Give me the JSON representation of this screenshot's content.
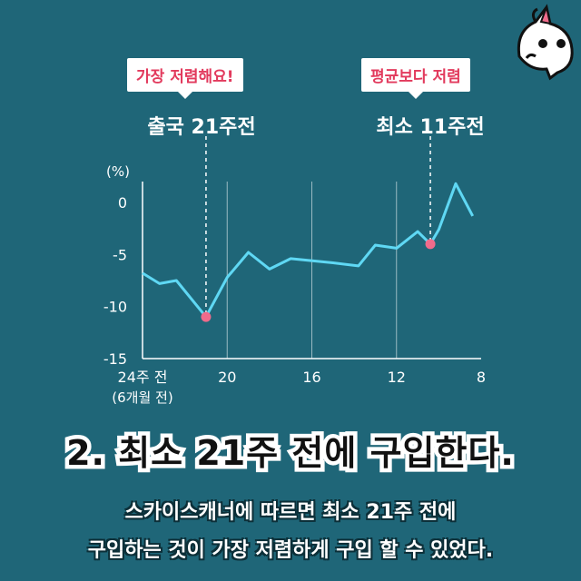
{
  "callouts": [
    {
      "tag": "가장 저렴해요!",
      "label": "출국 21주전"
    },
    {
      "tag": "평균보다 저렴",
      "label": "최소 11주전"
    }
  ],
  "chart_data": {
    "type": "line",
    "ylabel": "(%)",
    "ylim": [
      -15,
      2
    ],
    "yticks": [
      0,
      -5,
      -10,
      -15
    ],
    "xlim": [
      24,
      8
    ],
    "xticks": [
      "24주 전",
      "20",
      "16",
      "12",
      "8"
    ],
    "xtick_sub": "(6개월 전)",
    "series": [
      {
        "x": [
          24,
          23.2,
          22.4,
          21,
          20,
          19,
          18,
          17,
          15,
          13.8,
          13,
          12,
          11,
          10.4,
          10,
          9.2,
          8.4
        ],
        "y": [
          -6.8,
          -7.8,
          -7.5,
          -11,
          -7.2,
          -4.8,
          -6.4,
          -5.4,
          -5.8,
          -6.1,
          -4.1,
          -4.4,
          -2.8,
          -4,
          -2.6,
          1.8,
          -1.3
        ]
      }
    ],
    "highlights": [
      {
        "x": 21,
        "y": -11,
        "label": "출국 21주전"
      },
      {
        "x": 10.4,
        "y": -4,
        "label": "최소 11주전"
      }
    ],
    "colors": {
      "line": "#5fd8f4",
      "highlight": "#f06b8b",
      "axis": "#ffffff",
      "grid": "#ffffff"
    }
  },
  "headline": "2. 최소 21주 전에 구입한다.",
  "body": [
    "스카이스캐너에 따르면 최소 21주 전에",
    "구입하는 것이 가장 저렴하게 구입 할 수 있었다."
  ],
  "mascot_icon": "unicorn-mascot-icon"
}
